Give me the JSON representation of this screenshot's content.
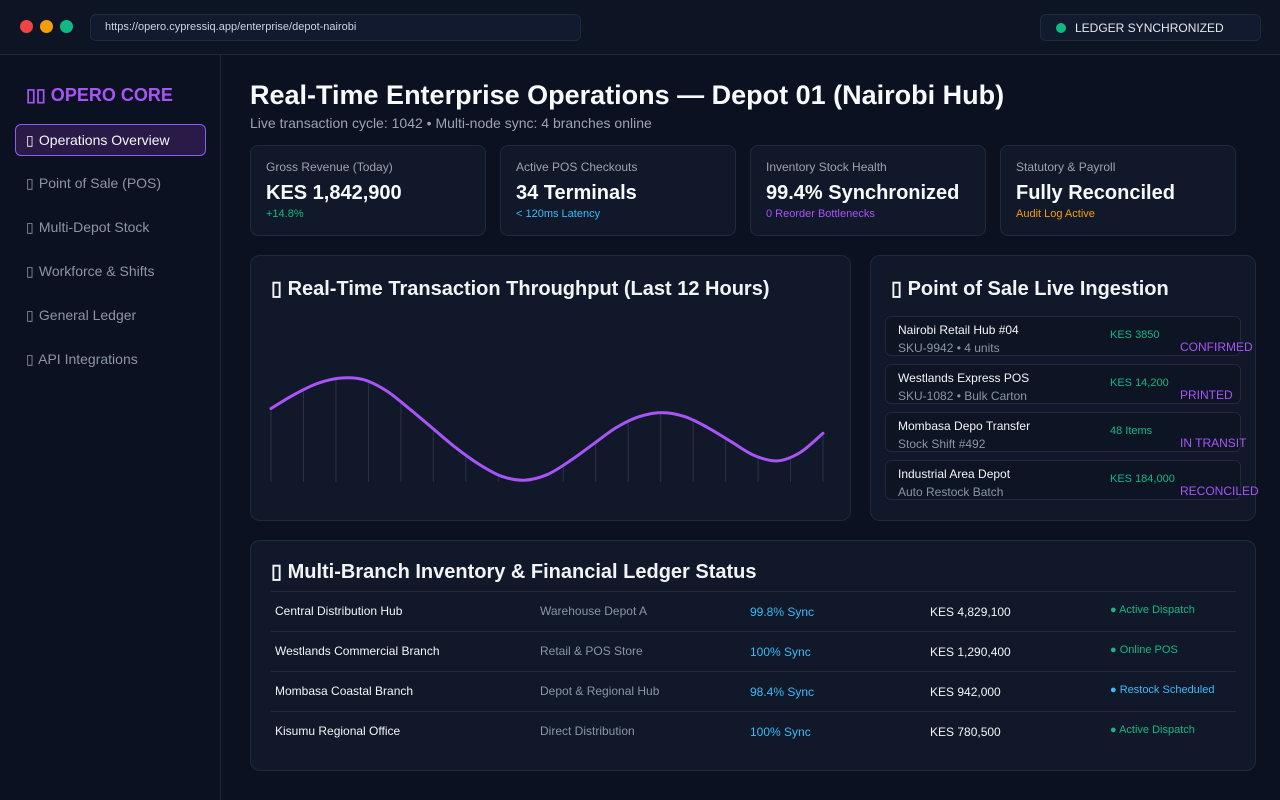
{
  "window": {
    "url": "https://opero.cypressiq.app/enterprise/depot-nairobi",
    "ledger_status": "LEDGER SYNCHRONIZED"
  },
  "sidebar": {
    "brand": "▯▯ OPERO CORE",
    "items": [
      {
        "icon": "▯",
        "label": "Operations Overview",
        "active": true
      },
      {
        "icon": "▯",
        "label": "Point of Sale (POS)"
      },
      {
        "icon": "▯",
        "label": "Multi-Depot Stock"
      },
      {
        "icon": "▯",
        "label": "Workforce & Shifts"
      },
      {
        "icon": "▯",
        "label": "General Ledger"
      },
      {
        "icon": "▯",
        "label": "API Integrations"
      }
    ]
  },
  "header": {
    "title": "Real-Time Enterprise Operations — Depot 01 (Nairobi Hub)",
    "subtitle": "Live transaction cycle: 1042 • Multi-node sync: 4 branches online"
  },
  "kpis": [
    {
      "label": "Gross Revenue (Today)",
      "value": "KES 1,842,900",
      "note": "+14.8%",
      "note_color": "#10b981"
    },
    {
      "label": "Active POS Checkouts",
      "value": "34 Terminals",
      "note": "< 120ms Latency",
      "note_color": "#38bdf8"
    },
    {
      "label": "Inventory Stock Health",
      "value": "99.4% Synchronized",
      "note": "0 Reorder Bottlenecks",
      "note_color": "#a855f7"
    },
    {
      "label": "Statutory & Payroll",
      "value": "Fully Reconciled",
      "note": "Audit Log Active",
      "note_color": "#f59e0b"
    }
  ],
  "throughput": {
    "title": "▯ Real-Time Transaction Throughput (Last 12 Hours)"
  },
  "chart_data": {
    "type": "line",
    "title": "Real-Time Transaction Throughput (Last 12 Hours)",
    "x": [
      0,
      0.5,
      1,
      1.5,
      2,
      2.5,
      3,
      3.5,
      4,
      4.5,
      5,
      5.5,
      6,
      6.5,
      7,
      7.5,
      8,
      8.5,
      9,
      9.5,
      10,
      10.5,
      11,
      11.5,
      12
    ],
    "y": [
      0.62,
      0.72,
      0.8,
      0.84,
      0.83,
      0.75,
      0.62,
      0.48,
      0.34,
      0.22,
      0.13,
      0.1,
      0.14,
      0.24,
      0.36,
      0.48,
      0.56,
      0.59,
      0.56,
      0.48,
      0.38,
      0.28,
      0.24,
      0.3,
      0.44
    ],
    "ylim": [
      0,
      1
    ],
    "color": "#a855f7",
    "xlabel": "",
    "ylabel": "",
    "grid": "vertical"
  },
  "pos_feed": {
    "title": "▯ Point of Sale Live Ingestion",
    "items": [
      {
        "name": "Nairobi Retail Hub #04",
        "sub": "SKU-9942 • 4 units",
        "amount": "KES 3850",
        "status": "CONFIRMED"
      },
      {
        "name": "Westlands Express POS",
        "sub": "SKU-1082 • Bulk Carton",
        "amount": "KES 14,200",
        "status": "PRINTED"
      },
      {
        "name": "Mombasa Depo Transfer",
        "sub": "Stock Shift #492",
        "amount": "48 Items",
        "status": "IN TRANSIT"
      },
      {
        "name": "Industrial Area Depot",
        "sub": "Auto Restock Batch",
        "amount": "KES 184,000",
        "status": "RECONCILED"
      }
    ]
  },
  "ledger": {
    "title": "▯ Multi-Branch Inventory & Financial Ledger Status",
    "rows": [
      {
        "name": "Central Distribution Hub",
        "type": "Warehouse Depot A",
        "sync": "99.8% Sync",
        "amount": "KES 4,829,100",
        "status": "● Active Dispatch",
        "status_color": "#10b981"
      },
      {
        "name": "Westlands Commercial Branch",
        "type": "Retail & POS Store",
        "sync": "100% Sync",
        "amount": "KES 1,290,400",
        "status": "● Online POS",
        "status_color": "#10b981"
      },
      {
        "name": "Mombasa Coastal Branch",
        "type": "Depot & Regional Hub",
        "sync": "98.4% Sync",
        "amount": "KES 942,000",
        "status": "● Restock Scheduled",
        "status_color": "#38bdf8"
      },
      {
        "name": "Kisumu Regional Office",
        "type": "Direct Distribution",
        "sync": "100% Sync",
        "amount": "KES 780,500",
        "status": "● Active Dispatch",
        "status_color": "#10b981"
      }
    ]
  }
}
